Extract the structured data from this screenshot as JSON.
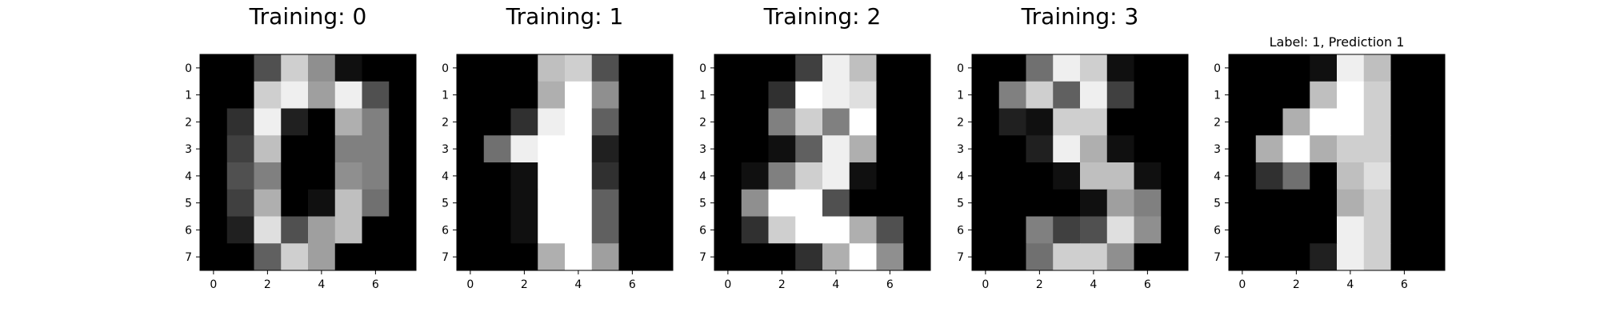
{
  "chart_data": [
    {
      "type": "heatmap",
      "title": "Training: 0",
      "xticks": [
        0,
        2,
        4,
        6
      ],
      "yticks": [
        0,
        1,
        2,
        3,
        4,
        5,
        6,
        7
      ],
      "xlim": [
        -0.5,
        7.5
      ],
      "ylim": [
        7.5,
        -0.5
      ],
      "colormap": "gray",
      "values": [
        [
          0,
          0,
          5,
          13,
          9,
          1,
          0,
          0
        ],
        [
          0,
          0,
          13,
          15,
          10,
          15,
          5,
          0
        ],
        [
          0,
          3,
          15,
          2,
          0,
          11,
          8,
          0
        ],
        [
          0,
          4,
          12,
          0,
          0,
          8,
          8,
          0
        ],
        [
          0,
          5,
          8,
          0,
          0,
          9,
          8,
          0
        ],
        [
          0,
          4,
          11,
          0,
          1,
          12,
          7,
          0
        ],
        [
          0,
          2,
          14,
          5,
          10,
          12,
          0,
          0
        ],
        [
          0,
          0,
          6,
          13,
          10,
          0,
          0,
          0
        ]
      ]
    },
    {
      "type": "heatmap",
      "title": "Training: 1",
      "xticks": [
        0,
        2,
        4,
        6
      ],
      "yticks": [
        0,
        1,
        2,
        3,
        4,
        5,
        6,
        7
      ],
      "xlim": [
        -0.5,
        7.5
      ],
      "ylim": [
        7.5,
        -0.5
      ],
      "colormap": "gray",
      "values": [
        [
          0,
          0,
          0,
          12,
          13,
          5,
          0,
          0
        ],
        [
          0,
          0,
          0,
          11,
          16,
          9,
          0,
          0
        ],
        [
          0,
          0,
          3,
          15,
          16,
          6,
          0,
          0
        ],
        [
          0,
          7,
          15,
          16,
          16,
          2,
          0,
          0
        ],
        [
          0,
          0,
          1,
          16,
          16,
          3,
          0,
          0
        ],
        [
          0,
          0,
          1,
          16,
          16,
          6,
          0,
          0
        ],
        [
          0,
          0,
          1,
          16,
          16,
          6,
          0,
          0
        ],
        [
          0,
          0,
          0,
          11,
          16,
          10,
          0,
          0
        ]
      ]
    },
    {
      "type": "heatmap",
      "title": "Training: 2",
      "xticks": [
        0,
        2,
        4,
        6
      ],
      "yticks": [
        0,
        1,
        2,
        3,
        4,
        5,
        6,
        7
      ],
      "xlim": [
        -0.5,
        7.5
      ],
      "ylim": [
        7.5,
        -0.5
      ],
      "colormap": "gray",
      "values": [
        [
          0,
          0,
          0,
          4,
          15,
          12,
          0,
          0
        ],
        [
          0,
          0,
          3,
          16,
          15,
          14,
          0,
          0
        ],
        [
          0,
          0,
          8,
          13,
          8,
          16,
          0,
          0
        ],
        [
          0,
          0,
          1,
          6,
          15,
          11,
          0,
          0
        ],
        [
          0,
          1,
          8,
          13,
          15,
          1,
          0,
          0
        ],
        [
          0,
          9,
          16,
          16,
          5,
          0,
          0,
          0
        ],
        [
          0,
          3,
          13,
          16,
          16,
          11,
          5,
          0
        ],
        [
          0,
          0,
          0,
          3,
          11,
          16,
          9,
          0
        ]
      ]
    },
    {
      "type": "heatmap",
      "title": "Training: 3",
      "xticks": [
        0,
        2,
        4,
        6
      ],
      "yticks": [
        0,
        1,
        2,
        3,
        4,
        5,
        6,
        7
      ],
      "xlim": [
        -0.5,
        7.5
      ],
      "ylim": [
        7.5,
        -0.5
      ],
      "colormap": "gray",
      "values": [
        [
          0,
          0,
          7,
          15,
          13,
          1,
          0,
          0
        ],
        [
          0,
          8,
          13,
          6,
          15,
          4,
          0,
          0
        ],
        [
          0,
          2,
          1,
          13,
          13,
          0,
          0,
          0
        ],
        [
          0,
          0,
          2,
          15,
          11,
          1,
          0,
          0
        ],
        [
          0,
          0,
          0,
          1,
          12,
          12,
          1,
          0
        ],
        [
          0,
          0,
          0,
          0,
          1,
          10,
          8,
          0
        ],
        [
          0,
          0,
          8,
          4,
          5,
          14,
          9,
          0
        ],
        [
          0,
          0,
          7,
          13,
          13,
          9,
          0,
          0
        ]
      ]
    },
    {
      "type": "heatmap",
      "title": "Label: 1, Prediction 1",
      "xticks": [
        0,
        2,
        4,
        6
      ],
      "yticks": [
        0,
        1,
        2,
        3,
        4,
        5,
        6,
        7
      ],
      "xlim": [
        -0.5,
        7.5
      ],
      "ylim": [
        7.5,
        -0.5
      ],
      "colormap": "gray",
      "values": [
        [
          0,
          0,
          0,
          1,
          15,
          12,
          0,
          0
        ],
        [
          0,
          0,
          0,
          12,
          16,
          13,
          0,
          0
        ],
        [
          0,
          0,
          11,
          16,
          16,
          13,
          0,
          0
        ],
        [
          0,
          11,
          16,
          11,
          13,
          13,
          0,
          0
        ],
        [
          0,
          3,
          7,
          0,
          12,
          14,
          0,
          0
        ],
        [
          0,
          0,
          0,
          0,
          11,
          13,
          0,
          0
        ],
        [
          0,
          0,
          0,
          0,
          15,
          13,
          0,
          0
        ],
        [
          0,
          0,
          0,
          2,
          15,
          13,
          0,
          0
        ]
      ]
    }
  ]
}
